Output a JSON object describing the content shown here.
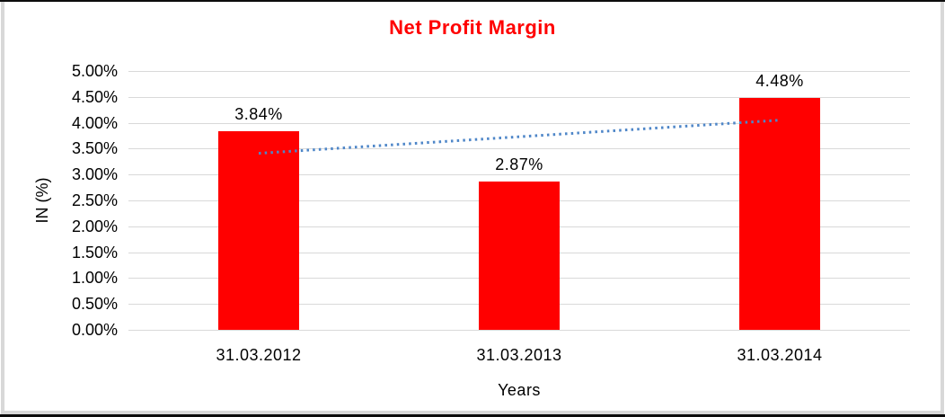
{
  "frame": {
    "outer_border_color": "#0c0c0c",
    "inner_border_color": "#d8d8d8",
    "background": "#ffffff"
  },
  "chart_data": {
    "type": "bar",
    "title": "Net Profit Margin",
    "title_color": "#ff0000",
    "xlabel": "Years",
    "ylabel": "IN (%)",
    "categories": [
      "31.03.2012",
      "31.03.2013",
      "31.03.2014"
    ],
    "values": [
      3.84,
      2.87,
      4.48
    ],
    "data_labels": [
      "3.84%",
      "2.87%",
      "4.48%"
    ],
    "bar_color": "#ff0000",
    "ylim": [
      0,
      5
    ],
    "ytick_step": 0.5,
    "ytick_labels": [
      "0.00%",
      "0.50%",
      "1.00%",
      "1.50%",
      "2.00%",
      "2.50%",
      "3.00%",
      "3.50%",
      "4.00%",
      "4.50%",
      "5.00%"
    ],
    "grid": true,
    "gridline_color": "#d9d9d9",
    "legend": "none",
    "trendline": {
      "type": "linear",
      "style": "dotted",
      "color": "#4e86c8",
      "start_value": 3.41,
      "end_value": 4.05
    }
  }
}
